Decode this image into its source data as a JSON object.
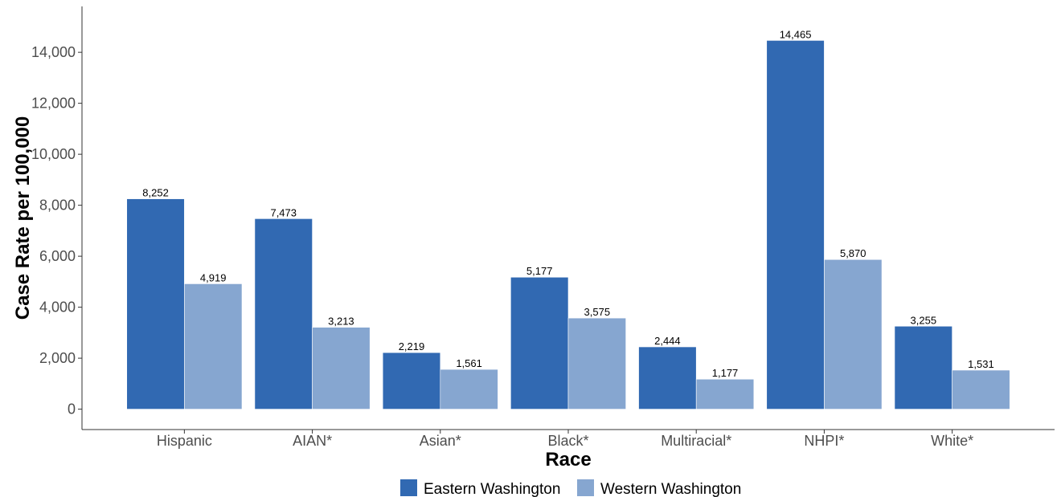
{
  "chart_data": {
    "type": "bar",
    "title": "",
    "xlabel": "Race",
    "ylabel": "Case Rate per 100,000",
    "categories": [
      "Hispanic",
      "AIAN*",
      "Asian*",
      "Black*",
      "Multiracial*",
      "NHPI*",
      "White*"
    ],
    "series": [
      {
        "name": "Eastern Washington",
        "color": "#3169B2",
        "values": [
          8252,
          7473,
          2219,
          5177,
          2444,
          14465,
          3255
        ],
        "labels": [
          "8,252",
          "7,473",
          "2,219",
          "5,177",
          "2,444",
          "14,465",
          "3,255"
        ]
      },
      {
        "name": "Western Washington",
        "color": "#86A6D0",
        "values": [
          4919,
          3213,
          1561,
          3575,
          1177,
          5870,
          1531
        ],
        "labels": [
          "4,919",
          "3,213",
          "1,561",
          "3,575",
          "1,177",
          "5,870",
          "1,531"
        ]
      }
    ],
    "ylim": [
      -800,
      15800
    ],
    "yticks": [
      0,
      2000,
      4000,
      6000,
      8000,
      10000,
      12000,
      14000
    ],
    "ytick_labels": [
      "0",
      "2,000",
      "4,000",
      "6,000",
      "8,000",
      "10,000",
      "12,000",
      "14,000"
    ],
    "grid": false,
    "legend_position": "bottom"
  }
}
